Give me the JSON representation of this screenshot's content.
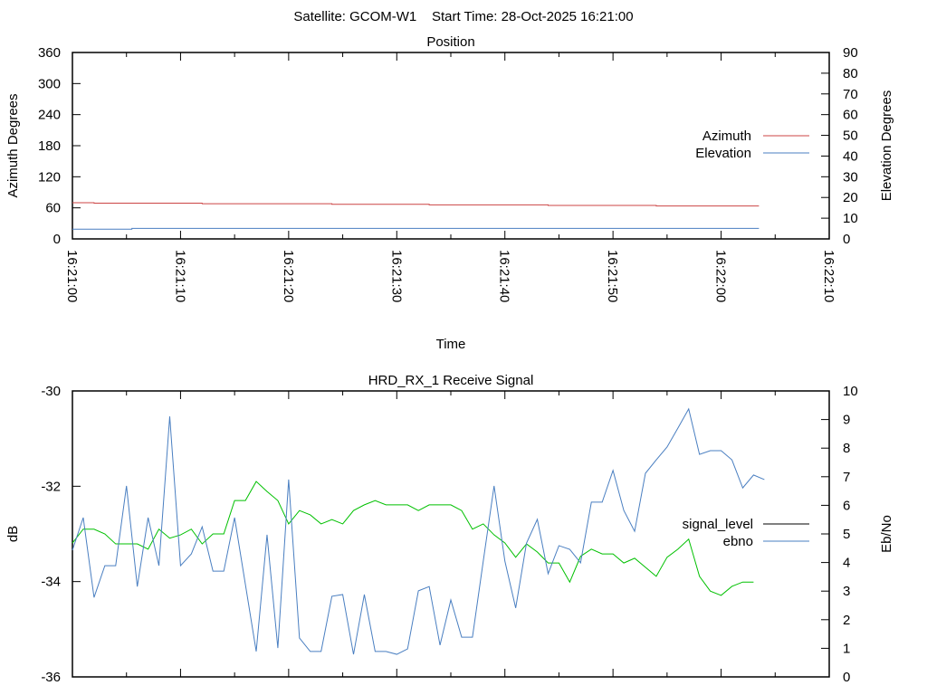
{
  "header": {
    "title": "Satellite: GCOM-W1    Start Time: 28-Oct-2025 16:21:00"
  },
  "colors": {
    "azimuth": "#cc4444",
    "elevation": "#4a7fc1",
    "signal_level_line": "#00c000",
    "signal_level_key": "#000000",
    "ebno": "#4a7fc1"
  },
  "chart_data": [
    {
      "type": "line",
      "title": "Position",
      "xlabel": "Time",
      "ylabel": "Azimuth Degrees",
      "y2label": "Elevation Degrees",
      "xlim_seconds": [
        0,
        70
      ],
      "xticks": [
        "16:21:00",
        "16:21:10",
        "16:21:20",
        "16:21:30",
        "16:21:40",
        "16:21:50",
        "16:22:00",
        "16:22:10"
      ],
      "ylim": [
        0,
        360
      ],
      "yticks": [
        "0",
        "60",
        "120",
        "180",
        "240",
        "300",
        "360"
      ],
      "y2lim": [
        0,
        90
      ],
      "y2ticks": [
        "0",
        "10",
        "20",
        "30",
        "40",
        "50",
        "60",
        "70",
        "80",
        "90"
      ],
      "legend_position": "right",
      "series": [
        {
          "name": "Azimuth",
          "axis": "y",
          "step": true,
          "x": [
            0,
            2,
            12,
            24,
            33,
            44,
            54,
            63.5
          ],
          "values": [
            69.9,
            69.0,
            68.0,
            66.9,
            65.8,
            64.7,
            63.6,
            63.6
          ]
        },
        {
          "name": "Elevation",
          "axis": "y2",
          "step": true,
          "x": [
            0,
            5.5,
            63.5
          ],
          "values": [
            4.7,
            5.1,
            5.1
          ]
        }
      ]
    },
    {
      "type": "line",
      "title": "HRD_RX_1 Receive Signal",
      "ylabel": "dB",
      "y2label": "Eb/No",
      "xlim_seconds": [
        0,
        70
      ],
      "ylim": [
        -36,
        -30
      ],
      "yticks": [
        "-36",
        "-34",
        "-32",
        "-30"
      ],
      "y2lim": [
        0,
        10
      ],
      "y2ticks": [
        "0",
        "1",
        "2",
        "3",
        "4",
        "5",
        "6",
        "7",
        "8",
        "9",
        "10"
      ],
      "legend_position": "right",
      "series": [
        {
          "name": "signal_level",
          "axis": "y",
          "values": [
            -33.19,
            -32.9,
            -32.9,
            -33.0,
            -33.21,
            -33.21,
            -33.21,
            -33.32,
            -32.9,
            -33.09,
            -33.02,
            -32.9,
            -33.21,
            -33.0,
            -33.0,
            -32.3,
            -32.3,
            -31.9,
            -32.11,
            -32.3,
            -32.79,
            -32.51,
            -32.6,
            -32.79,
            -32.7,
            -32.79,
            -32.51,
            -32.39,
            -32.3,
            -32.39,
            -32.39,
            -32.39,
            -32.51,
            -32.39,
            -32.39,
            -32.39,
            -32.51,
            -32.9,
            -32.79,
            -33.02,
            -33.19,
            -33.49,
            -33.21,
            -33.38,
            -33.61,
            -33.61,
            -34.01,
            -33.47,
            -33.32,
            -33.42,
            -33.42,
            -33.61,
            -33.51,
            -33.7,
            -33.89,
            -33.49,
            -33.32,
            -33.11,
            -33.89,
            -34.2,
            -34.29,
            -34.1,
            -34.01,
            -34.01
          ]
        },
        {
          "name": "ebno",
          "axis": "y2",
          "values": [
            4.43,
            5.57,
            2.78,
            3.89,
            3.89,
            6.68,
            3.16,
            5.57,
            3.89,
            9.11,
            3.89,
            4.3,
            5.25,
            3.7,
            3.7,
            5.57,
            3.23,
            0.89,
            4.97,
            1.01,
            6.9,
            1.36,
            0.89,
            0.89,
            2.82,
            2.88,
            0.79,
            2.88,
            0.89,
            0.89,
            0.79,
            0.98,
            3.01,
            3.16,
            1.11,
            2.69,
            1.39,
            1.39,
            4.05,
            6.68,
            4.05,
            2.41,
            4.68,
            5.51,
            3.61,
            4.59,
            4.46,
            3.99,
            6.11,
            6.11,
            7.22,
            5.82,
            5.09,
            7.12,
            7.59,
            8.04,
            8.7,
            9.37,
            7.78,
            7.91,
            7.91,
            7.59,
            6.61,
            7.06,
            6.9
          ]
        }
      ]
    }
  ]
}
